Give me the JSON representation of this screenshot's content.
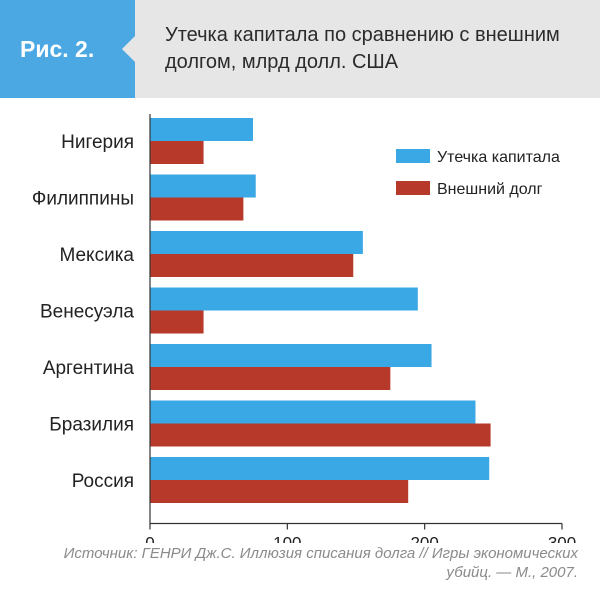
{
  "figure": {
    "label": "Рис. 2.",
    "title": "Утечка капитала по сравнению с внешним долгом, млрд долл. США",
    "source": "Источник: ГЕНРИ Дж.С. Иллюзия списания долга // Игры экономических убийц. — М., 2007."
  },
  "colors": {
    "accent": "#4ba8e3",
    "series_capital": "#3aa8e4",
    "series_debt": "#b6392a",
    "header_bg": "#e6e6e6"
  },
  "chart_data": {
    "type": "bar",
    "orientation": "horizontal",
    "title": "Утечка капитала по сравнению с внешним долгом, млрд долл. США",
    "categories": [
      "Нигерия",
      "Филиппины",
      "Мексика",
      "Венесуэла",
      "Аргентина",
      "Бразилия",
      "Россия"
    ],
    "series": [
      {
        "name": "Утечка капитала",
        "color": "#3aa8e4",
        "values": [
          75,
          77,
          155,
          195,
          205,
          237,
          247
        ]
      },
      {
        "name": "Внешний долг",
        "color": "#b6392a",
        "values": [
          39,
          68,
          148,
          39,
          175,
          248,
          188
        ]
      }
    ],
    "xlim": [
      0,
      300
    ],
    "xticks": [
      0,
      100,
      200,
      300
    ],
    "xlabel": "",
    "ylabel": "",
    "grid": false,
    "legend": "top-right"
  }
}
